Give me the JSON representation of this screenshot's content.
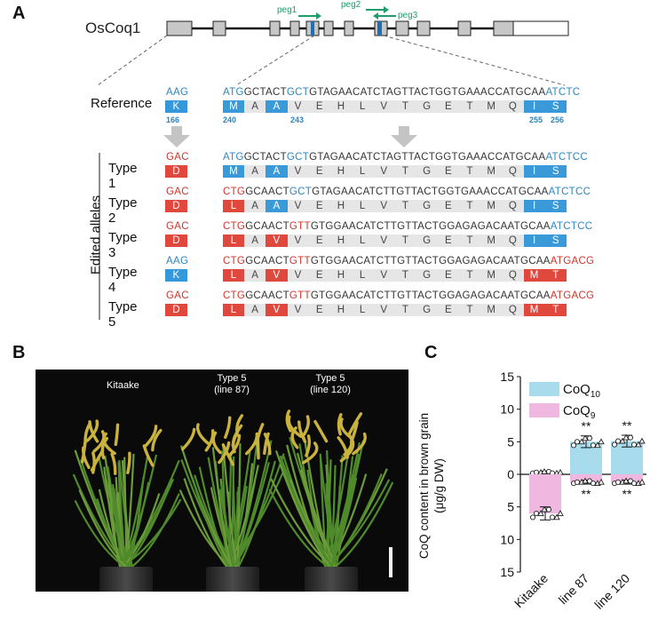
{
  "panel_a": {
    "label": "A",
    "gene_name": "OsCoq1",
    "pegs": [
      "peg1",
      "peg2",
      "peg3"
    ],
    "edited_alleles_label": "Edited alleles",
    "rows": [
      {
        "name": "Reference",
        "left_codon": {
          "text": "AAG",
          "color": "#2e86c1",
          "aa": "K",
          "aa_color": "#3498db"
        },
        "seq_segments": [
          {
            "text": "ATG",
            "color": "#2e86c1"
          },
          {
            "text": "GCTACT",
            "color": "#333333"
          },
          {
            "text": "GCT",
            "color": "#2e86c1"
          },
          {
            "text": "GTAGAACATCTAGTTACTGGTGAAACCATGCAA",
            "color": "#333333"
          },
          {
            "text": "ATCTC",
            "color": "#2e86c1"
          }
        ],
        "aa_boxes": [
          {
            "aa": "M",
            "kind": "blue"
          },
          {
            "aa": "A",
            "kind": "gray"
          },
          {
            "aa": "A",
            "kind": "blue"
          },
          {
            "aa": "V",
            "kind": "gray"
          },
          {
            "aa": "E",
            "kind": "gray"
          },
          {
            "aa": "H",
            "kind": "gray"
          },
          {
            "aa": "L",
            "kind": "gray"
          },
          {
            "aa": "V",
            "kind": "gray"
          },
          {
            "aa": "T",
            "kind": "gray"
          },
          {
            "aa": "G",
            "kind": "gray"
          },
          {
            "aa": "E",
            "kind": "gray"
          },
          {
            "aa": "T",
            "kind": "gray"
          },
          {
            "aa": "M",
            "kind": "gray"
          },
          {
            "aa": "Q",
            "kind": "gray"
          },
          {
            "aa": "I",
            "kind": "blue"
          },
          {
            "aa": "S",
            "kind": "blue"
          }
        ],
        "positions": {
          "left": "166",
          "p240": "240",
          "p243": "243",
          "p255": "255",
          "p256": "256"
        }
      },
      {
        "name": "Type 1",
        "left_codon": {
          "text": "GAC",
          "color": "#d0352b",
          "aa": "D",
          "aa_color": "#e0483d"
        },
        "seq_segments": [
          {
            "text": "ATG",
            "color": "#2e86c1"
          },
          {
            "text": "GCTACT",
            "color": "#333333"
          },
          {
            "text": "GCT",
            "color": "#2e86c1"
          },
          {
            "text": "GTAGAACATCTAGTTACTGGTGAAACCATGCAA",
            "color": "#333333"
          },
          {
            "text": "ATCTCC",
            "color": "#2e86c1"
          }
        ],
        "aa_boxes": [
          {
            "aa": "M",
            "kind": "blue"
          },
          {
            "aa": "A",
            "kind": "gray"
          },
          {
            "aa": "A",
            "kind": "blue"
          },
          {
            "aa": "V",
            "kind": "gray"
          },
          {
            "aa": "E",
            "kind": "gray"
          },
          {
            "aa": "H",
            "kind": "gray"
          },
          {
            "aa": "L",
            "kind": "gray"
          },
          {
            "aa": "V",
            "kind": "gray"
          },
          {
            "aa": "T",
            "kind": "gray"
          },
          {
            "aa": "G",
            "kind": "gray"
          },
          {
            "aa": "E",
            "kind": "gray"
          },
          {
            "aa": "T",
            "kind": "gray"
          },
          {
            "aa": "M",
            "kind": "gray"
          },
          {
            "aa": "Q",
            "kind": "gray"
          },
          {
            "aa": "I",
            "kind": "blue"
          },
          {
            "aa": "S",
            "kind": "blue"
          }
        ]
      },
      {
        "name": "Type 2",
        "left_codon": {
          "text": "GAC",
          "color": "#d0352b",
          "aa": "D",
          "aa_color": "#e0483d"
        },
        "seq_segments": [
          {
            "text": "CTG",
            "color": "#d0352b"
          },
          {
            "text": "GCAACT",
            "color": "#333333"
          },
          {
            "text": "GCT",
            "color": "#2e86c1"
          },
          {
            "text": "GTAGAACATCTTGTTACTGGTGAAACCATGCAA",
            "color": "#333333"
          },
          {
            "text": "ATCTCC",
            "color": "#2e86c1"
          }
        ],
        "aa_boxes": [
          {
            "aa": "L",
            "kind": "red"
          },
          {
            "aa": "A",
            "kind": "gray"
          },
          {
            "aa": "A",
            "kind": "blue"
          },
          {
            "aa": "V",
            "kind": "gray"
          },
          {
            "aa": "E",
            "kind": "gray"
          },
          {
            "aa": "H",
            "kind": "gray"
          },
          {
            "aa": "L",
            "kind": "gray"
          },
          {
            "aa": "V",
            "kind": "gray"
          },
          {
            "aa": "T",
            "kind": "gray"
          },
          {
            "aa": "G",
            "kind": "gray"
          },
          {
            "aa": "E",
            "kind": "gray"
          },
          {
            "aa": "T",
            "kind": "gray"
          },
          {
            "aa": "M",
            "kind": "gray"
          },
          {
            "aa": "Q",
            "kind": "gray"
          },
          {
            "aa": "I",
            "kind": "blue"
          },
          {
            "aa": "S",
            "kind": "blue"
          }
        ]
      },
      {
        "name": "Type 3",
        "left_codon": {
          "text": "GAC",
          "color": "#d0352b",
          "aa": "D",
          "aa_color": "#e0483d"
        },
        "seq_segments": [
          {
            "text": "CTG",
            "color": "#d0352b"
          },
          {
            "text": "GCAACT",
            "color": "#333333"
          },
          {
            "text": "GTT",
            "color": "#d0352b"
          },
          {
            "text": "GTGGAACATCTTGTTACTGGAGAGACAATGCAA",
            "color": "#333333"
          },
          {
            "text": "ATCTCC",
            "color": "#2e86c1"
          }
        ],
        "aa_boxes": [
          {
            "aa": "L",
            "kind": "red"
          },
          {
            "aa": "A",
            "kind": "gray"
          },
          {
            "aa": "V",
            "kind": "red"
          },
          {
            "aa": "V",
            "kind": "gray"
          },
          {
            "aa": "E",
            "kind": "gray"
          },
          {
            "aa": "H",
            "kind": "gray"
          },
          {
            "aa": "L",
            "kind": "gray"
          },
          {
            "aa": "V",
            "kind": "gray"
          },
          {
            "aa": "T",
            "kind": "gray"
          },
          {
            "aa": "G",
            "kind": "gray"
          },
          {
            "aa": "E",
            "kind": "gray"
          },
          {
            "aa": "T",
            "kind": "gray"
          },
          {
            "aa": "M",
            "kind": "gray"
          },
          {
            "aa": "Q",
            "kind": "gray"
          },
          {
            "aa": "I",
            "kind": "blue"
          },
          {
            "aa": "S",
            "kind": "blue"
          }
        ]
      },
      {
        "name": "Type 4",
        "left_codon": {
          "text": "AAG",
          "color": "#2e86c1",
          "aa": "K",
          "aa_color": "#3498db"
        },
        "seq_segments": [
          {
            "text": "CTG",
            "color": "#d0352b"
          },
          {
            "text": "GCAACT",
            "color": "#333333"
          },
          {
            "text": "GTT",
            "color": "#d0352b"
          },
          {
            "text": "GTGGAACATCTTGTTACTGGAGAGACAATGCAA",
            "color": "#333333"
          },
          {
            "text": "ATGACG",
            "color": "#d0352b"
          }
        ],
        "aa_boxes": [
          {
            "aa": "L",
            "kind": "red"
          },
          {
            "aa": "A",
            "kind": "gray"
          },
          {
            "aa": "V",
            "kind": "red"
          },
          {
            "aa": "V",
            "kind": "gray"
          },
          {
            "aa": "E",
            "kind": "gray"
          },
          {
            "aa": "H",
            "kind": "gray"
          },
          {
            "aa": "L",
            "kind": "gray"
          },
          {
            "aa": "V",
            "kind": "gray"
          },
          {
            "aa": "T",
            "kind": "gray"
          },
          {
            "aa": "G",
            "kind": "gray"
          },
          {
            "aa": "E",
            "kind": "gray"
          },
          {
            "aa": "T",
            "kind": "gray"
          },
          {
            "aa": "M",
            "kind": "gray"
          },
          {
            "aa": "Q",
            "kind": "gray"
          },
          {
            "aa": "M",
            "kind": "red"
          },
          {
            "aa": "T",
            "kind": "red"
          }
        ]
      },
      {
        "name": "Type 5",
        "left_codon": {
          "text": "GAC",
          "color": "#d0352b",
          "aa": "D",
          "aa_color": "#e0483d"
        },
        "seq_segments": [
          {
            "text": "CTG",
            "color": "#d0352b"
          },
          {
            "text": "GCAACT",
            "color": "#333333"
          },
          {
            "text": "GTT",
            "color": "#d0352b"
          },
          {
            "text": "GTGGAACATCTTGTTACTGGAGAGACAATGCAA",
            "color": "#333333"
          },
          {
            "text": "ATGACG",
            "color": "#d0352b"
          }
        ],
        "aa_boxes": [
          {
            "aa": "L",
            "kind": "red"
          },
          {
            "aa": "A",
            "kind": "gray"
          },
          {
            "aa": "V",
            "kind": "red"
          },
          {
            "aa": "V",
            "kind": "gray"
          },
          {
            "aa": "E",
            "kind": "gray"
          },
          {
            "aa": "H",
            "kind": "gray"
          },
          {
            "aa": "L",
            "kind": "gray"
          },
          {
            "aa": "V",
            "kind": "gray"
          },
          {
            "aa": "T",
            "kind": "gray"
          },
          {
            "aa": "G",
            "kind": "gray"
          },
          {
            "aa": "E",
            "kind": "gray"
          },
          {
            "aa": "T",
            "kind": "gray"
          },
          {
            "aa": "M",
            "kind": "gray"
          },
          {
            "aa": "Q",
            "kind": "gray"
          },
          {
            "aa": "M",
            "kind": "red"
          },
          {
            "aa": "T",
            "kind": "red"
          }
        ]
      }
    ],
    "colors": {
      "blue": "#3a9ad9",
      "red": "#e0483d",
      "gray": "#e6e6e6",
      "peg": "#1f9d6b"
    }
  },
  "panel_b": {
    "label": "B",
    "plants": [
      {
        "line1": "Kitaake",
        "line2": ""
      },
      {
        "line1": "Type 5",
        "line2": "(line 87)"
      },
      {
        "line1": "Type 5",
        "line2": "(line 120)"
      }
    ]
  },
  "panel_c": {
    "label": "C",
    "ylabel_line1": "CoQ content in brown grain",
    "ylabel_line2": "(μg/g DW)",
    "legend": [
      {
        "name": "CoQ",
        "sub": "10",
        "color": "#a8dced"
      },
      {
        "name": "CoQ",
        "sub": "9",
        "color": "#f0b8e0"
      }
    ],
    "significance": "**"
  },
  "chart_data": {
    "type": "bar",
    "categories": [
      "Kitaake",
      "line 87",
      "line 120"
    ],
    "series": [
      {
        "name": "CoQ10",
        "values": [
          0.3,
          5.0,
          5.1
        ],
        "errors": [
          0.2,
          0.9,
          0.9
        ],
        "direction": "up",
        "color": "#a8dced"
      },
      {
        "name": "CoQ9",
        "values": [
          6.0,
          1.2,
          1.2
        ],
        "errors": [
          1.0,
          0.3,
          0.3
        ],
        "direction": "down",
        "color": "#f0b8e0"
      }
    ],
    "yticks_up": [
      "0",
      "5",
      "10",
      "15"
    ],
    "yticks_down": [
      "5",
      "10",
      "15"
    ],
    "ylim": [
      -15,
      15
    ],
    "significant": [
      false,
      true,
      true
    ]
  }
}
